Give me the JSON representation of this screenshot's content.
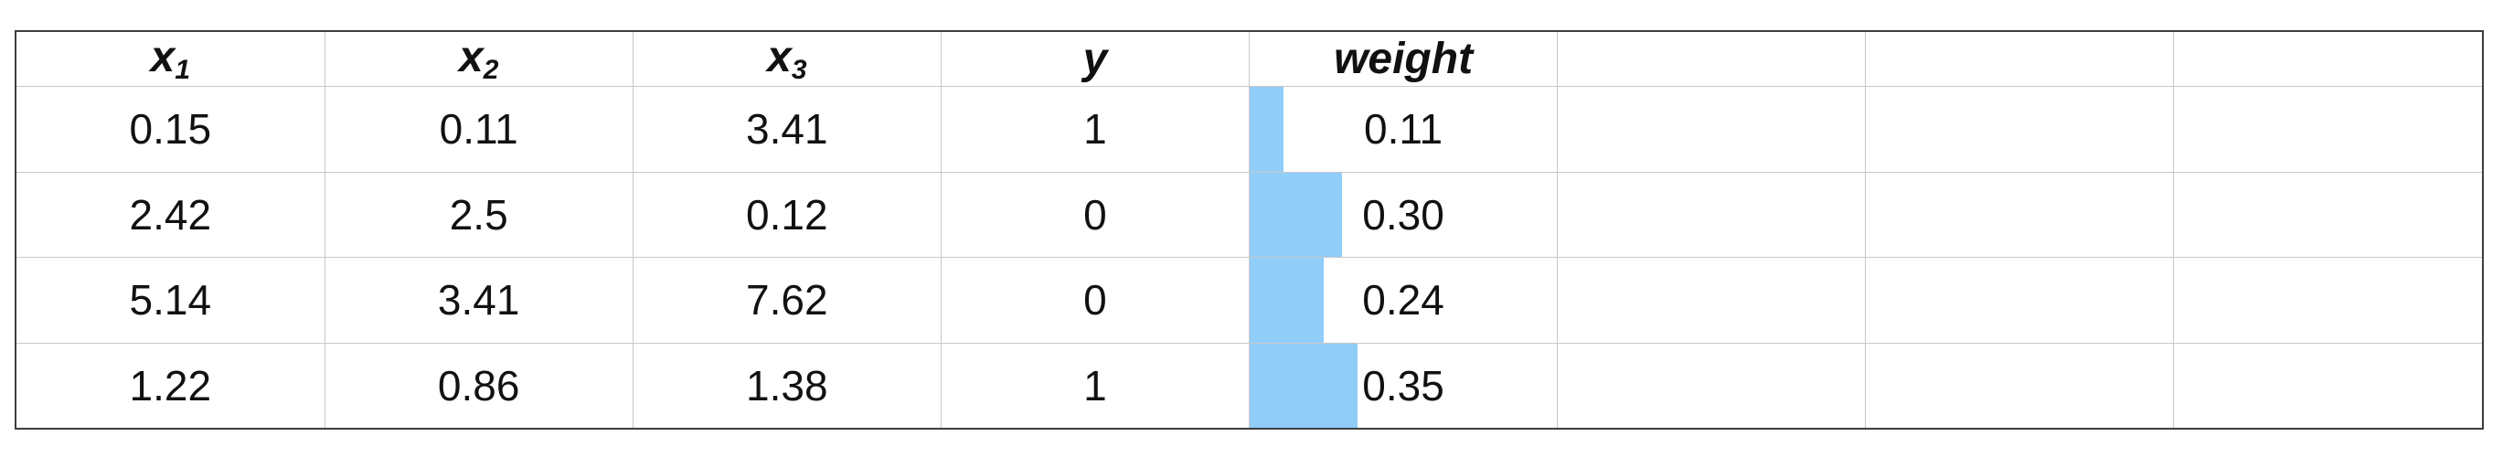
{
  "table": {
    "headers": [
      {
        "base": "x",
        "sub": "1"
      },
      {
        "base": "x",
        "sub": "2"
      },
      {
        "base": "x",
        "sub": "3"
      },
      {
        "base": "y",
        "sub": ""
      },
      {
        "base": "weight",
        "sub": ""
      }
    ],
    "rows": [
      [
        "0.15",
        "0.11",
        "3.41",
        "1",
        "0.11"
      ],
      [
        "2.42",
        "2.5",
        "0.12",
        "0",
        "0.30"
      ],
      [
        "5.14",
        "3.41",
        "7.62",
        "0",
        "0.24"
      ],
      [
        "1.22",
        "0.86",
        "1.38",
        "1",
        "0.35"
      ]
    ],
    "weight_bar": {
      "color": "#90cdf9",
      "values": [
        0.11,
        0.3,
        0.24,
        0.35
      ],
      "scale_max": 1.0
    },
    "empty_columns": 3
  }
}
